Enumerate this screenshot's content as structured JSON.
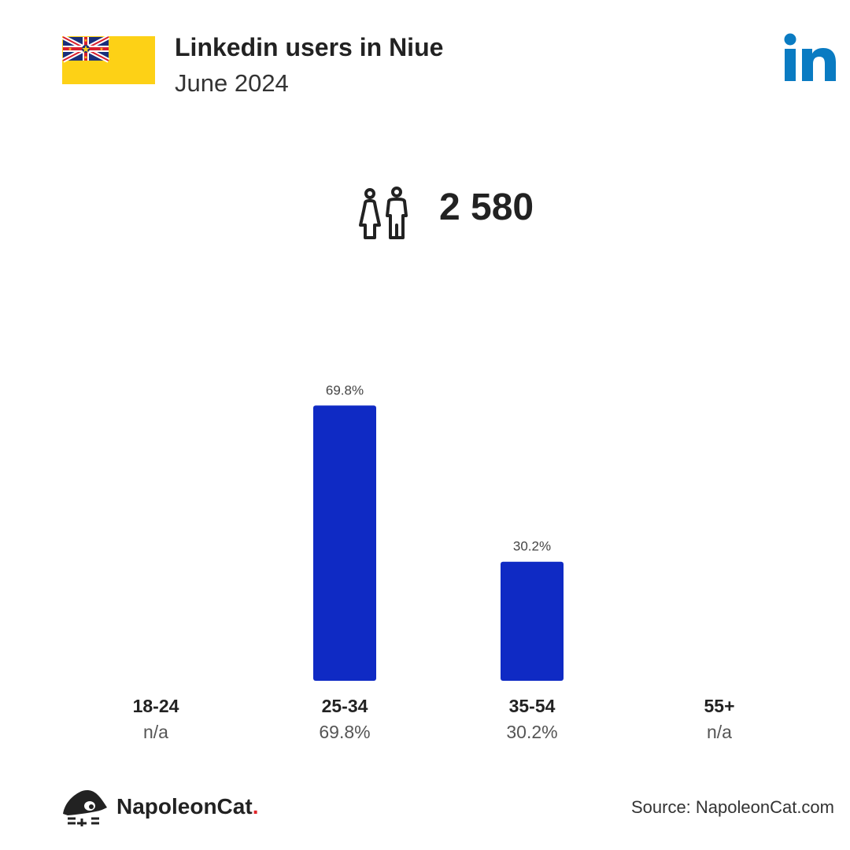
{
  "header": {
    "title": "Linkedin users in Niue",
    "subtitle": "June 2024"
  },
  "summary": {
    "total_users": "2 580"
  },
  "colors": {
    "bar": "#0f2ac4",
    "linkedin_blue": "#0a7bc2",
    "flag_yellow": "#fdd116"
  },
  "icons": [
    "niue-flag-icon",
    "linkedin-logo-icon",
    "people-icon",
    "napoleoncat-logo-icon"
  ],
  "chart_data": {
    "type": "bar",
    "categories": [
      "18-24",
      "25-34",
      "35-54",
      "55+"
    ],
    "values": [
      null,
      69.8,
      30.2,
      null
    ],
    "data_labels": [
      "",
      "69.8%",
      "30.2%",
      ""
    ],
    "category_values": [
      "n/a",
      "69.8%",
      "30.2%",
      "n/a"
    ],
    "ylim": [
      0,
      100
    ],
    "grid": false
  },
  "footer": {
    "brand": "NapoleonCat",
    "brand_dot": ".",
    "source": "Source: NapoleonCat.com"
  }
}
